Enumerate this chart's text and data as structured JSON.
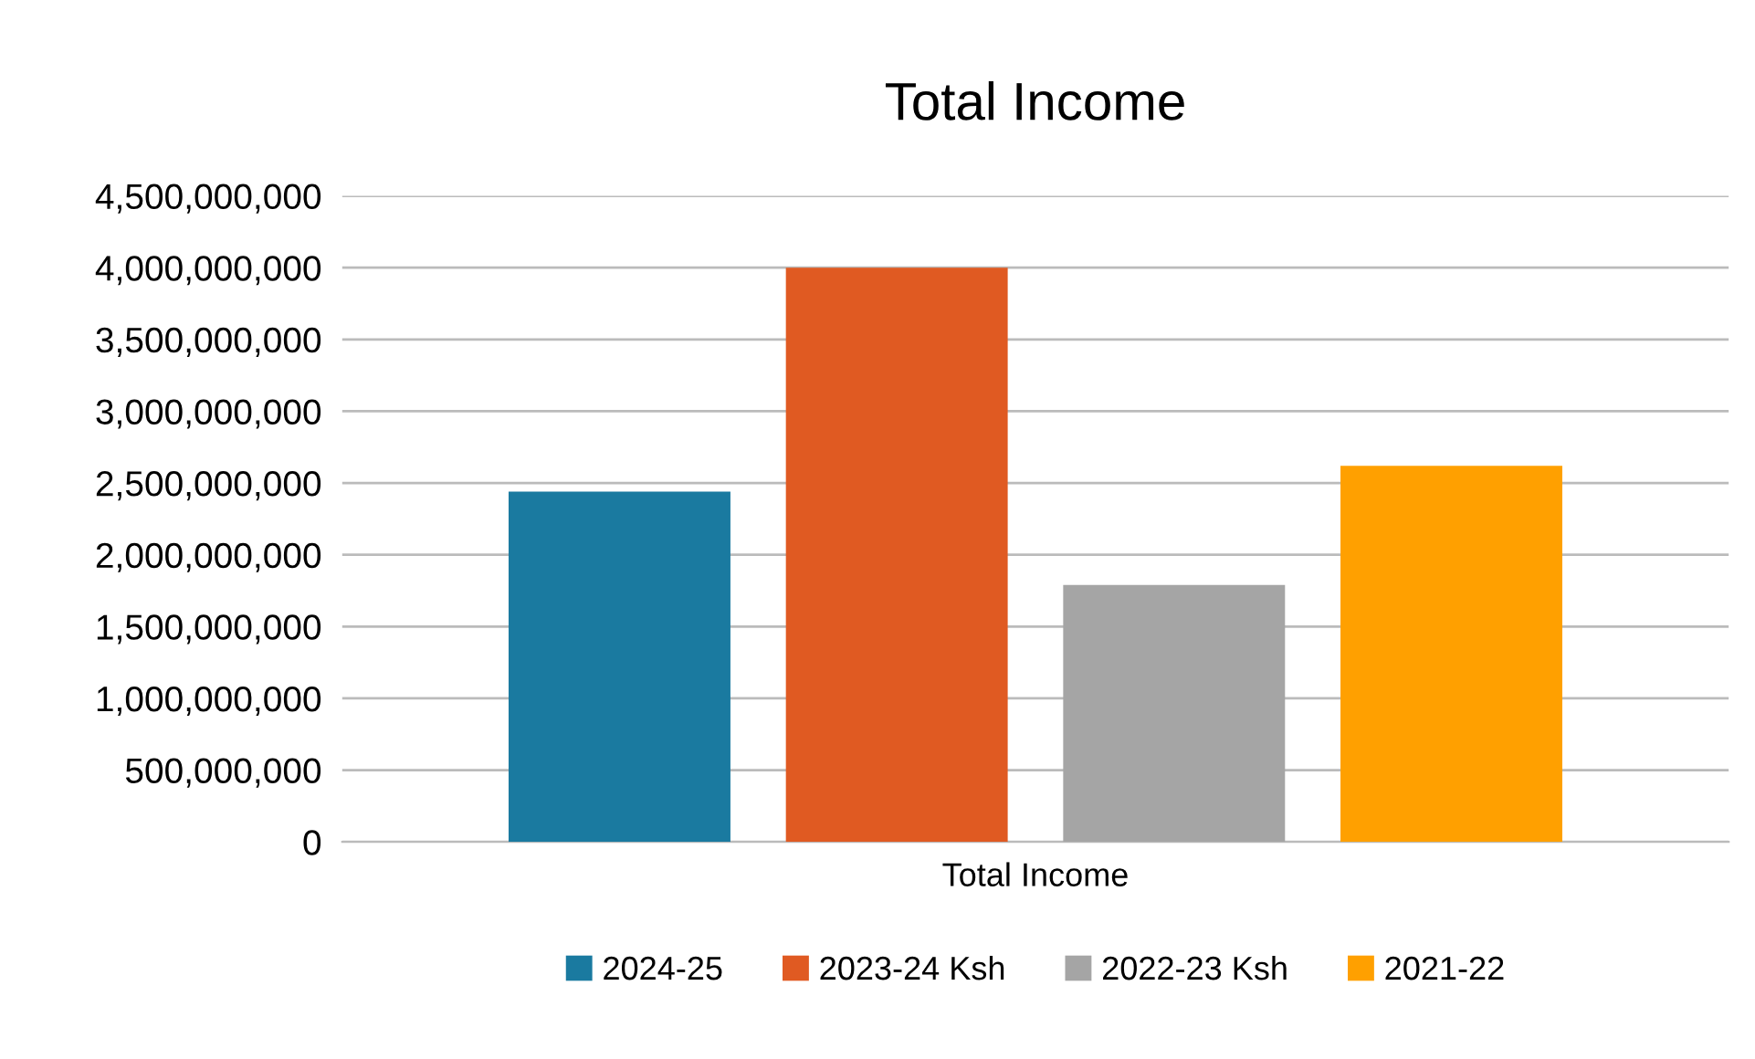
{
  "chart_data": {
    "type": "bar",
    "title": "Total Income",
    "categories": [
      "Total Income"
    ],
    "series": [
      {
        "name": "2024-25",
        "color": "#1a7aa0",
        "values": [
          2440000000
        ]
      },
      {
        "name": "2023-24 Ksh",
        "color": "#e05a22",
        "values": [
          4000000000
        ]
      },
      {
        "name": "2022-23 Ksh",
        "color": "#a5a5a5",
        "values": [
          1790000000
        ]
      },
      {
        "name": "2021-22",
        "color": "#ffa000",
        "values": [
          2620000000
        ]
      }
    ],
    "ylim": [
      0,
      4500000000
    ],
    "yticks": [
      {
        "value": 0,
        "label": "0"
      },
      {
        "value": 500000000,
        "label": "500,000,000"
      },
      {
        "value": 1000000000,
        "label": "1,000,000,000"
      },
      {
        "value": 1500000000,
        "label": "1,500,000,000"
      },
      {
        "value": 2000000000,
        "label": "2,000,000,000"
      },
      {
        "value": 2500000000,
        "label": "2,500,000,000"
      },
      {
        "value": 3000000000,
        "label": "3,000,000,000"
      },
      {
        "value": 3500000000,
        "label": "3,500,000,000"
      },
      {
        "value": 4000000000,
        "label": "4,000,000,000"
      },
      {
        "value": 4500000000,
        "label": "4,500,000,000"
      }
    ],
    "grid": "y",
    "legend": "bottom"
  }
}
